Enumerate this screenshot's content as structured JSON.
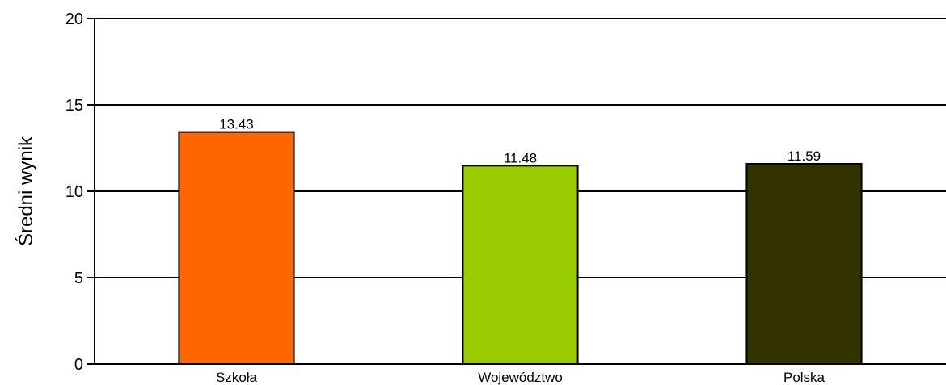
{
  "chart_data": {
    "type": "bar",
    "title": "",
    "xlabel": "",
    "ylabel": "Średni wynik",
    "ylim": [
      0,
      20
    ],
    "yticks": [
      0,
      5,
      10,
      15,
      20
    ],
    "grid": true,
    "legend": "none",
    "categories": [
      "Szkoła",
      "Województwo",
      "Polska"
    ],
    "values": [
      13.43,
      11.48,
      11.59
    ],
    "value_labels": [
      "13.43",
      "11.48",
      "11.59"
    ],
    "colors": [
      "#ff6600",
      "#99cc00",
      "#333300"
    ]
  }
}
